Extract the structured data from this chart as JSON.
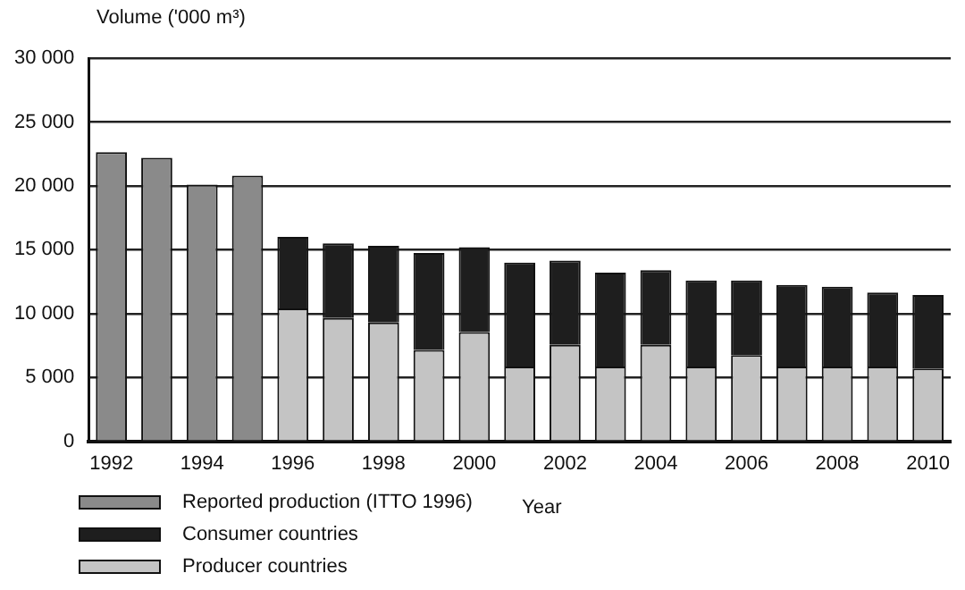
{
  "chart_data": {
    "type": "bar",
    "stacked": true,
    "xlabel": "Year",
    "ylabel": "Volume ('000 m³)",
    "categories": [
      "1992",
      null,
      "1994",
      null,
      "1996",
      null,
      "1998",
      null,
      "2000",
      null,
      "2002",
      null,
      "2004",
      null,
      "2006",
      null,
      "2008",
      null,
      "2010"
    ],
    "series": [
      {
        "name": "Producer countries",
        "color": "#c4c4c4",
        "values": [
          null,
          null,
          null,
          null,
          10400,
          9650,
          9300,
          7150,
          8550,
          5850,
          7550,
          5850,
          7550,
          5850,
          6750,
          5850,
          5850,
          5850,
          5700
        ]
      },
      {
        "name": "Consumer countries",
        "color": "#1e1e1e",
        "values": [
          null,
          null,
          null,
          null,
          5600,
          5850,
          6000,
          7600,
          6650,
          8150,
          6600,
          7350,
          5850,
          6750,
          5850,
          6400,
          6250,
          5800,
          5750
        ]
      },
      {
        "name": "Reported production (ITTO 1996)",
        "color": "#8a8a8a",
        "values": [
          22650,
          22200,
          20100,
          20800,
          null,
          null,
          null,
          null,
          null,
          null,
          null,
          null,
          null,
          null,
          null,
          null,
          null,
          null,
          null
        ]
      }
    ],
    "ylim": [
      0,
      30000
    ],
    "yticks": [
      0,
      {
        "value": 5000,
        "label": "5 000"
      },
      {
        "value": 10000,
        "label": "10 000"
      },
      {
        "value": 15000,
        "label": "15 000"
      },
      {
        "value": 20000,
        "label": "20 000"
      },
      {
        "value": 25000,
        "label": "25 000"
      },
      {
        "value": 30000,
        "label": "30 000"
      }
    ],
    "grid": "y",
    "legend": "bottom left"
  }
}
